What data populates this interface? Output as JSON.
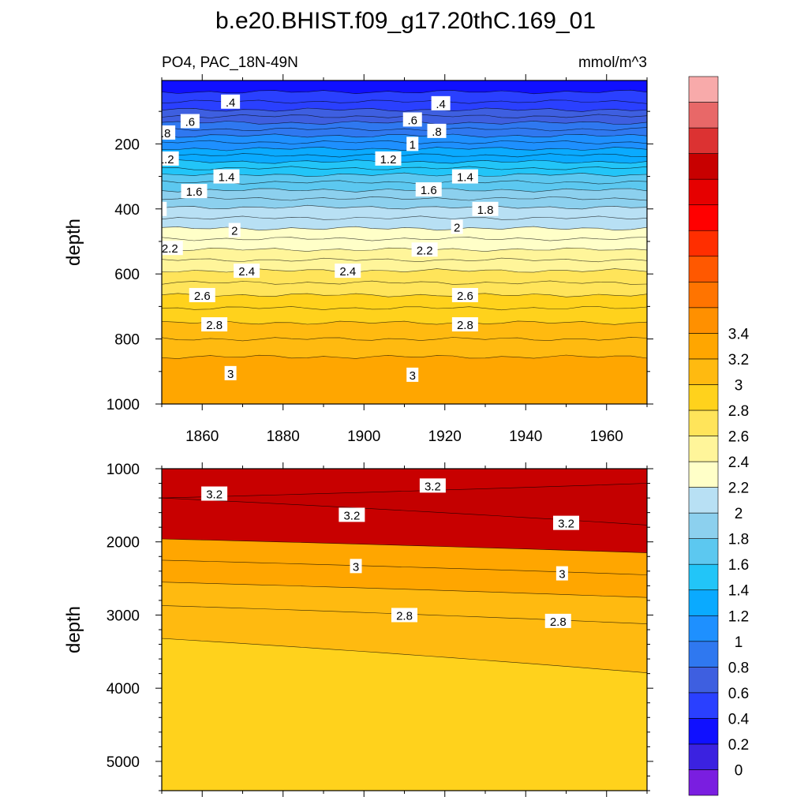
{
  "title": "b.e20.BHIST.f09_g17.20thC.169_01",
  "subtitle_left": "PO4, PAC_18N-49N",
  "subtitle_right": "mmol/m^3",
  "colors": [
    "#7a1ee0",
    "#3b22e0",
    "#1010ff",
    "#2a40ff",
    "#3e5fe0",
    "#2f78f0",
    "#1e90ff",
    "#0aaaff",
    "#22c5f8",
    "#5cc8f0",
    "#8cd0ee",
    "#b8e0f4",
    "#ffffc8",
    "#fff59a",
    "#ffe45a",
    "#ffd21c",
    "#ffba10",
    "#ffa600",
    "#ff9000",
    "#ff7400",
    "#ff5800",
    "#ff2e00",
    "#ff0000",
    "#e60000",
    "#c80000",
    "#dc3232",
    "#e86868",
    "#f8aaaa"
  ],
  "chart_data": [
    {
      "type": "contour",
      "panel": "upper",
      "xlabel": "",
      "ylabel": "depth",
      "xlim": [
        1850,
        1970
      ],
      "ylim": [
        1000,
        5
      ],
      "xticks": [
        1860,
        1880,
        1900,
        1920,
        1940,
        1960
      ],
      "yticks": [
        200,
        400,
        600,
        800,
        1000
      ],
      "isoline_depths": [
        {
          "level": 0.2,
          "depth": 40
        },
        {
          "level": 0.3,
          "depth": 70
        },
        {
          "level": 0.4,
          "depth": 95
        },
        {
          "level": 0.5,
          "depth": 115
        },
        {
          "level": 0.6,
          "depth": 135
        },
        {
          "level": 0.7,
          "depth": 155
        },
        {
          "level": 0.8,
          "depth": 175
        },
        {
          "level": 0.9,
          "depth": 195
        },
        {
          "level": 1.0,
          "depth": 215
        },
        {
          "level": 1.1,
          "depth": 235
        },
        {
          "level": 1.2,
          "depth": 255
        },
        {
          "level": 1.3,
          "depth": 275
        },
        {
          "level": 1.4,
          "depth": 295
        },
        {
          "level": 1.5,
          "depth": 318
        },
        {
          "level": 1.6,
          "depth": 342
        },
        {
          "level": 1.7,
          "depth": 368
        },
        {
          "level": 1.8,
          "depth": 395
        },
        {
          "level": 1.9,
          "depth": 428
        },
        {
          "level": 2.0,
          "depth": 460
        },
        {
          "level": 2.1,
          "depth": 492
        },
        {
          "level": 2.2,
          "depth": 525
        },
        {
          "level": 2.3,
          "depth": 557
        },
        {
          "level": 2.4,
          "depth": 590
        },
        {
          "level": 2.5,
          "depth": 627
        },
        {
          "level": 2.6,
          "depth": 665
        },
        {
          "level": 2.7,
          "depth": 705
        },
        {
          "level": 2.8,
          "depth": 750
        },
        {
          "level": 2.9,
          "depth": 800
        },
        {
          "level": 3.0,
          "depth": 855
        }
      ],
      "contour_labels": [
        {
          "text": ".4",
          "year": 1867,
          "depth": 70
        },
        {
          "text": ".4",
          "year": 1919,
          "depth": 75
        },
        {
          "text": ".6",
          "year": 1857,
          "depth": 130
        },
        {
          "text": ".6",
          "year": 1912,
          "depth": 125
        },
        {
          "text": ".8",
          "year": 1851,
          "depth": 165
        },
        {
          "text": ".8",
          "year": 1918,
          "depth": 160
        },
        {
          "text": "1",
          "year": 1843,
          "depth": 205
        },
        {
          "text": "1",
          "year": 1912,
          "depth": 200
        },
        {
          "text": "1.2",
          "year": 1851,
          "depth": 245
        },
        {
          "text": "1.2",
          "year": 1906,
          "depth": 245
        },
        {
          "text": "1.4",
          "year": 1866,
          "depth": 300
        },
        {
          "text": "1.4",
          "year": 1925,
          "depth": 300
        },
        {
          "text": "1.6",
          "year": 1858,
          "depth": 345
        },
        {
          "text": "1.6",
          "year": 1916,
          "depth": 340
        },
        {
          "text": "1.8",
          "year": 1848,
          "depth": 400
        },
        {
          "text": "1.8",
          "year": 1930,
          "depth": 400
        },
        {
          "text": "2",
          "year": 1868,
          "depth": 465
        },
        {
          "text": "2",
          "year": 1923,
          "depth": 455
        },
        {
          "text": "2.2",
          "year": 1852,
          "depth": 520
        },
        {
          "text": "2.2",
          "year": 1915,
          "depth": 525
        },
        {
          "text": "2.4",
          "year": 1871,
          "depth": 590
        },
        {
          "text": "2.4",
          "year": 1896,
          "depth": 590
        },
        {
          "text": "2.6",
          "year": 1860,
          "depth": 665
        },
        {
          "text": "2.6",
          "year": 1925,
          "depth": 665
        },
        {
          "text": "2.8",
          "year": 1863,
          "depth": 755
        },
        {
          "text": "2.8",
          "year": 1925,
          "depth": 755
        },
        {
          "text": "3",
          "year": 1867,
          "depth": 905
        },
        {
          "text": "3",
          "year": 1912,
          "depth": 910
        }
      ]
    },
    {
      "type": "contour",
      "panel": "lower",
      "xlabel": "",
      "ylabel": "depth",
      "xlim": [
        1850,
        1970
      ],
      "ylim": [
        5400,
        1000
      ],
      "yticks": [
        1000,
        2000,
        3000,
        4000,
        5000
      ],
      "isolines": [
        {
          "level": 3.2,
          "start_depth": 1400,
          "end_depth": 1200
        },
        {
          "level": 3.2,
          "start_depth": 1400,
          "end_depth": 1770
        },
        {
          "level": 3.1,
          "start_depth": 1960,
          "end_depth": 2150
        },
        {
          "level": 3.0,
          "start_depth": 2250,
          "end_depth": 2450
        },
        {
          "level": 2.9,
          "start_depth": 2550,
          "end_depth": 2760
        },
        {
          "level": 2.8,
          "start_depth": 2870,
          "end_depth": 3120
        },
        {
          "level": 2.7,
          "start_depth": 3320,
          "end_depth": 3790
        }
      ],
      "contour_labels": [
        {
          "text": "3.2",
          "year": 1863,
          "depth": 1340
        },
        {
          "text": "3.2",
          "year": 1917,
          "depth": 1230
        },
        {
          "text": "3.2",
          "year": 1897,
          "depth": 1630
        },
        {
          "text": "3.2",
          "year": 1950,
          "depth": 1740
        },
        {
          "text": "3",
          "year": 1898,
          "depth": 2330
        },
        {
          "text": "3",
          "year": 1949,
          "depth": 2430
        },
        {
          "text": "2.8",
          "year": 1910,
          "depth": 3000
        },
        {
          "text": "2.8",
          "year": 1948,
          "depth": 3080
        }
      ]
    },
    {
      "type": "colorbar",
      "levels": [
        -0.2,
        0,
        0.2,
        0.4,
        0.6,
        0.8,
        1.0,
        1.2,
        1.4,
        1.6,
        1.8,
        2.0,
        2.2,
        2.4,
        2.6,
        2.8,
        3.0,
        3.2,
        3.4
      ],
      "labels": [
        "0",
        "0.2",
        "0.4",
        "0.6",
        "0.8",
        "1",
        "1.2",
        "1.4",
        "1.6",
        "1.8",
        "2",
        "2.2",
        "2.4",
        "2.6",
        "2.8",
        "3",
        "3.2",
        "3.4"
      ]
    }
  ]
}
